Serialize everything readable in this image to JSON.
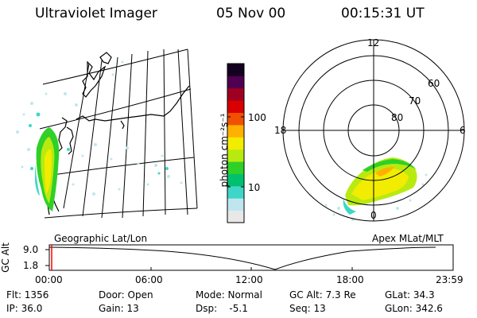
{
  "header": {
    "instrument": "Ultraviolet Imager",
    "date": "05 Nov 00",
    "time": "00:15:31 UT"
  },
  "colorbar": {
    "unit_label": "photon cm⁻²s⁻¹",
    "ticks": [
      {
        "label": "100",
        "value": 100
      },
      {
        "label": "10",
        "value": 10
      }
    ],
    "scale": "log",
    "colors": [
      "#e8e8e8",
      "#bfe6ef",
      "#3fd6c8",
      "#00c070",
      "#2fd028",
      "#b8ea10",
      "#f2ec00",
      "#ffb000",
      "#f05000",
      "#d80000",
      "#a00020",
      "#500050",
      "#140020"
    ]
  },
  "geo_map": {
    "label": "Geographic Lat/Lon"
  },
  "polar_plot": {
    "label": "Apex MLat/MLT",
    "mlt_labels": [
      "12",
      "18",
      "6",
      "0"
    ],
    "lat_labels": [
      "60",
      "70",
      "80"
    ]
  },
  "timeline": {
    "y_axis_title": "GC Alt",
    "y_ticks": [
      "9.0",
      "1.8"
    ],
    "x_ticks": [
      "00:00",
      "06:00",
      "12:00",
      "18:00",
      "23:59"
    ],
    "marker_color": "#ff0000"
  },
  "info": {
    "row1": {
      "filter": "Flt: 1356",
      "door": "Door: Open",
      "mode": "Mode: Normal",
      "gc_alt": "GC Alt: 7.3 Re",
      "glat": "GLat: 34.3"
    },
    "row2": {
      "ip": "IP: 36.0",
      "gain": "Gain: 13",
      "dsp": "Dsp:    -5.1",
      "seq": "Seq: 13",
      "glon": "GLon: 342.6"
    }
  }
}
